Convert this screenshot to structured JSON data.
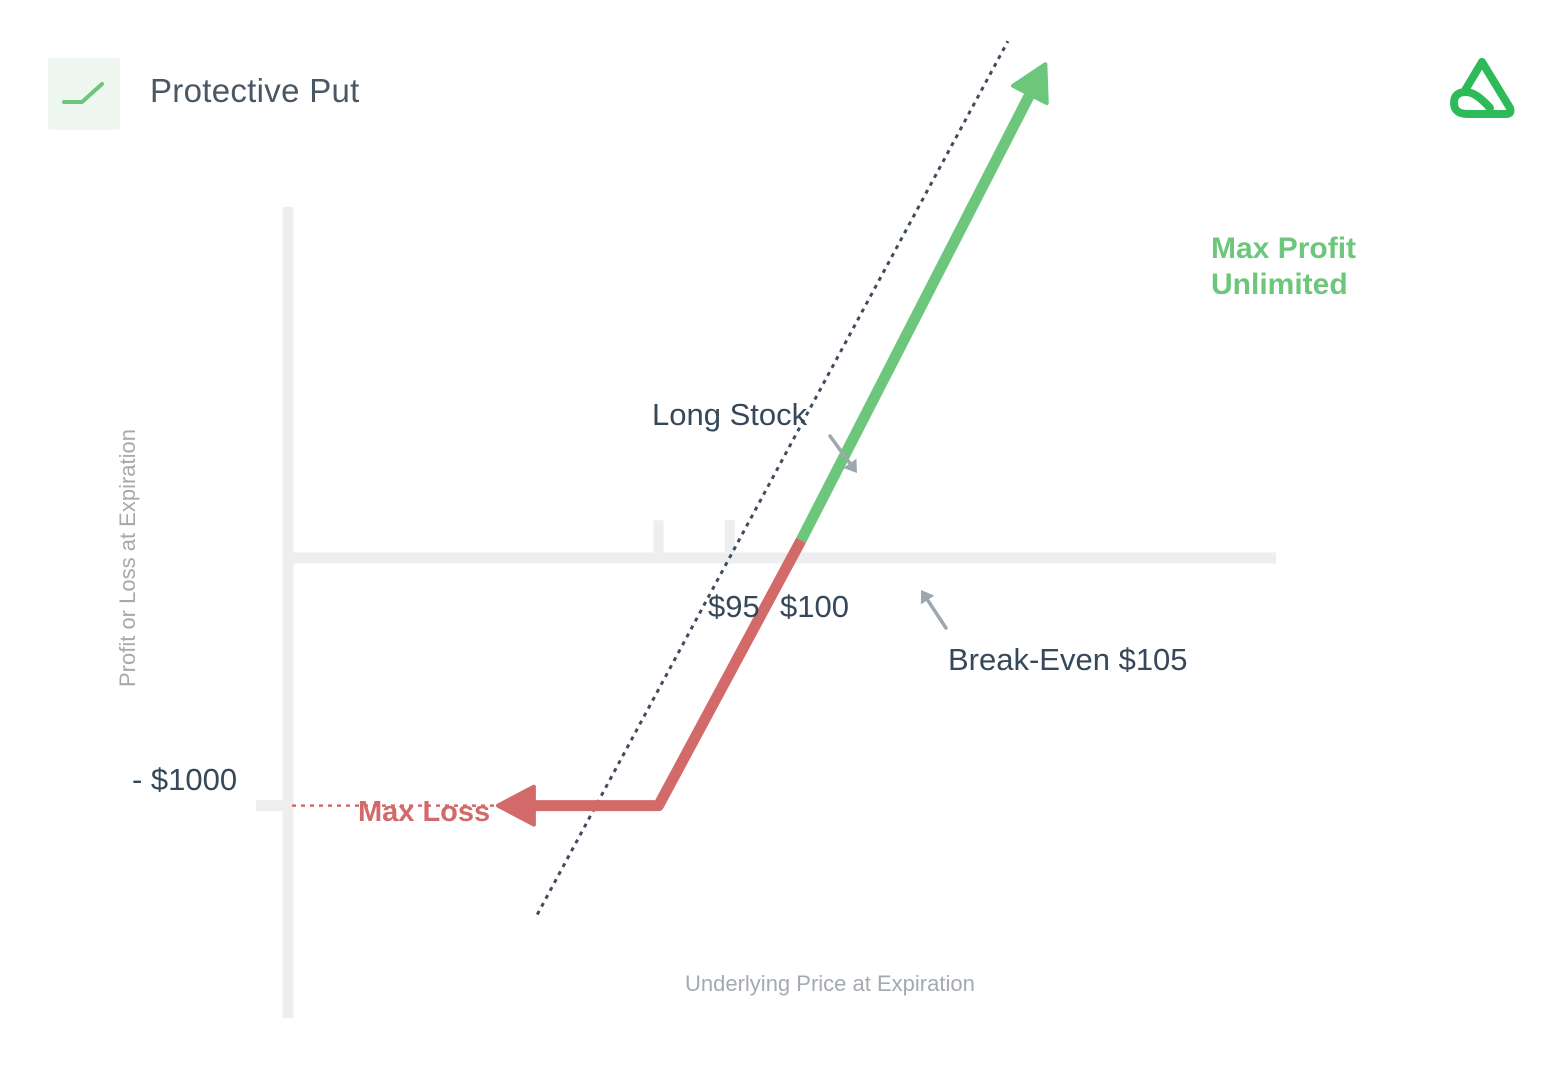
{
  "header": {
    "title": "Protective Put",
    "badge_icon": "trend-line-icon",
    "logo_icon": "brand-logo-icon"
  },
  "colors": {
    "profit": "#6cc77c",
    "loss": "#d26a6a",
    "axis": "#eceef0",
    "dark_text": "#36485a",
    "muted_text": "#a4aab0",
    "reference_line": "#3e4c5c"
  },
  "chart_data": {
    "type": "line",
    "title": "Protective Put",
    "xlabel": "Underlying Price at Expiration",
    "ylabel": "Profit or Loss at Expiration",
    "xlim": [
      69.3,
      138.3
    ],
    "ylim": [
      -1800,
      1440
    ],
    "x_ticks": [
      {
        "value": 95,
        "label": "$95"
      },
      {
        "value": 100,
        "label": "$100"
      }
    ],
    "y_ticks": [
      {
        "value": -1000,
        "label": "- $1000"
      }
    ],
    "series": [
      {
        "role": "loss",
        "points": [
          [
            85,
            -1000
          ],
          [
            95,
            -1000
          ],
          [
            105,
            0
          ]
        ]
      },
      {
        "role": "profit",
        "points": [
          [
            105,
            0
          ],
          [
            122,
            1780
          ]
        ]
      },
      {
        "role": "reference",
        "name": "Long Stock",
        "style": "dotted",
        "points": [
          [
            86.5,
            -1410
          ],
          [
            119.5,
            1880
          ]
        ]
      },
      {
        "role": "max-loss-guide",
        "style": "dotted",
        "points": [
          [
            69.3,
            -1000
          ],
          [
            85,
            -1000
          ]
        ]
      }
    ],
    "annotations": {
      "long_stock": "Long Stock",
      "max_profit_line1": "Max Profit",
      "max_profit_line2": "Unlimited",
      "break_even": "Break-Even $105",
      "max_loss": "Max Loss"
    }
  }
}
